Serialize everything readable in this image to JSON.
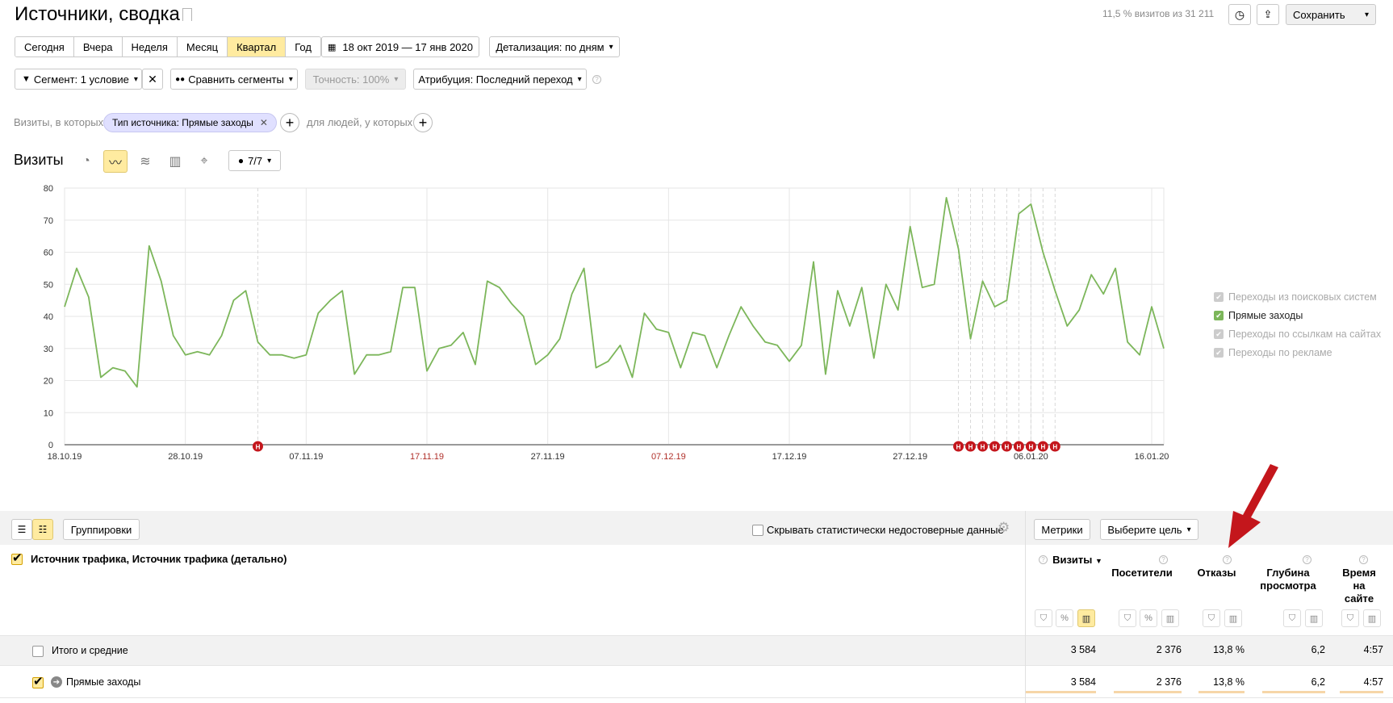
{
  "header": {
    "title": "Источники, сводка",
    "stats": "11,5 % визитов из 31 211",
    "save_label": "Сохранить"
  },
  "periods": {
    "items": [
      "Сегодня",
      "Вчера",
      "Неделя",
      "Месяц",
      "Квартал",
      "Год"
    ],
    "active_index": 4
  },
  "date_range": "18 окт 2019 — 17 янв 2020",
  "detail_label": "Детализация: по дням",
  "segment_label": "Сегмент: 1 условие",
  "compare_label": "Сравнить сегменты",
  "accuracy_label": "Точность: 100%",
  "attribution_label": "Атрибуция: Последний переход",
  "filter": {
    "prefix": "Визиты, в которых",
    "chip": "Тип источника: Прямые заходы",
    "suffix": "для людей, у которых"
  },
  "chart_section": {
    "title": "Визиты",
    "annotations_label": "7/7"
  },
  "chart_data": {
    "type": "line",
    "series": [
      {
        "name": "Прямые заходы",
        "color": "#7cb65a",
        "values": [
          43,
          55,
          46,
          21,
          24,
          23,
          18,
          62,
          51,
          34,
          28,
          29,
          28,
          34,
          45,
          48,
          32,
          28,
          28,
          27,
          28,
          41,
          45,
          48,
          22,
          28,
          28,
          29,
          49,
          49,
          23,
          30,
          31,
          35,
          25,
          51,
          49,
          44,
          40,
          25,
          28,
          33,
          47,
          55,
          24,
          26,
          31,
          21,
          41,
          36,
          35,
          24,
          35,
          34,
          24,
          34,
          43,
          37,
          32,
          31,
          26,
          31,
          57,
          22,
          48,
          37,
          49,
          27,
          50,
          42,
          68,
          49,
          50,
          77,
          61,
          33,
          51,
          43,
          45,
          72,
          75,
          60,
          48,
          37,
          42,
          53,
          47,
          55,
          32,
          28,
          43,
          30
        ]
      }
    ],
    "x_tick_labels": [
      "18.10.19",
      "28.10.19",
      "07.11.19",
      "17.11.19",
      "27.11.19",
      "07.12.19",
      "17.12.19",
      "27.12.19",
      "06.01.20",
      "16.01.20"
    ],
    "x_tick_weekend": [
      false,
      false,
      false,
      true,
      false,
      true,
      false,
      false,
      false,
      false
    ],
    "y_ticks": [
      0,
      10,
      20,
      30,
      40,
      50,
      60,
      70,
      80
    ],
    "ylim": [
      0,
      80
    ],
    "grid": true,
    "annotation_marker": "Н",
    "annotation_days": [
      16,
      74,
      75,
      76,
      77,
      78,
      79,
      80,
      81,
      82
    ],
    "legend_position": "right"
  },
  "legend": [
    {
      "label": "Переходы из поисковых систем",
      "on": false
    },
    {
      "label": "Прямые заходы",
      "on": true
    },
    {
      "label": "Переходы по ссылкам на сайтах",
      "on": false
    },
    {
      "label": "Переходы по рекламе",
      "on": false
    }
  ],
  "table_toolbar": {
    "groupings_label": "Группировки",
    "hide_label": "Скрывать статистически недостоверные данные",
    "metrics_label": "Метрики",
    "goal_label": "Выберите цель"
  },
  "table": {
    "dimension_header": "Источник трафика, Источник трафика (детально)",
    "columns": [
      "Визиты",
      "Посетители",
      "Отказы",
      "Глубина просмотра",
      "Время на сайте"
    ],
    "total": {
      "label": "Итого и средние",
      "values": [
        "3 584",
        "2 376",
        "13,8 %",
        "6,2",
        "4:57"
      ]
    },
    "rows": [
      {
        "label": "Прямые заходы",
        "values": [
          "3 584",
          "2 376",
          "13,8 %",
          "6,2",
          "4:57"
        ]
      }
    ]
  },
  "colors": {
    "accent": "#ffeba0",
    "series": "#7cb65a",
    "arrow": "#c4161c",
    "weekend": "#b0302a"
  }
}
